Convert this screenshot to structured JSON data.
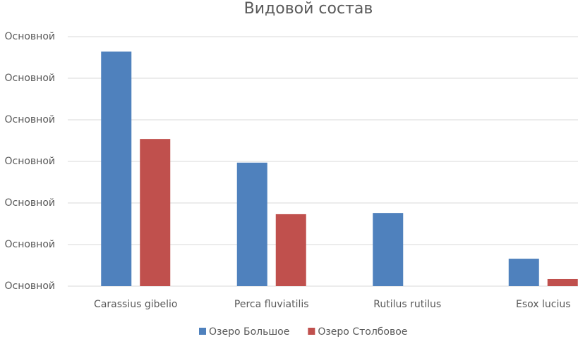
{
  "chart_data": {
    "type": "bar",
    "title": "Видовой состав",
    "categories": [
      "Carassius gibelio",
      "Perca fluviatilis",
      "Rutilus rutilus",
      "Esox lucius"
    ],
    "series": [
      {
        "name": "Озеро Большое",
        "color": "#4f81bd",
        "values": [
          56.4,
          29.7,
          17.6,
          6.6
        ]
      },
      {
        "name": "Озеро Столбовое",
        "color": "#c0504d",
        "values": [
          35.4,
          17.3,
          null,
          1.7
        ]
      }
    ],
    "ylim": [
      0,
      60
    ],
    "yticks": [
      {
        "value": 0,
        "label": "Основной"
      },
      {
        "value": 10,
        "label": "Основной"
      },
      {
        "value": 20,
        "label": "Основной"
      },
      {
        "value": 30,
        "label": "Основной"
      },
      {
        "value": 40,
        "label": "Основной"
      },
      {
        "value": 50,
        "label": "Основной"
      },
      {
        "value": 60,
        "label": "Основной"
      }
    ],
    "grid": true,
    "legend": "bottom"
  }
}
